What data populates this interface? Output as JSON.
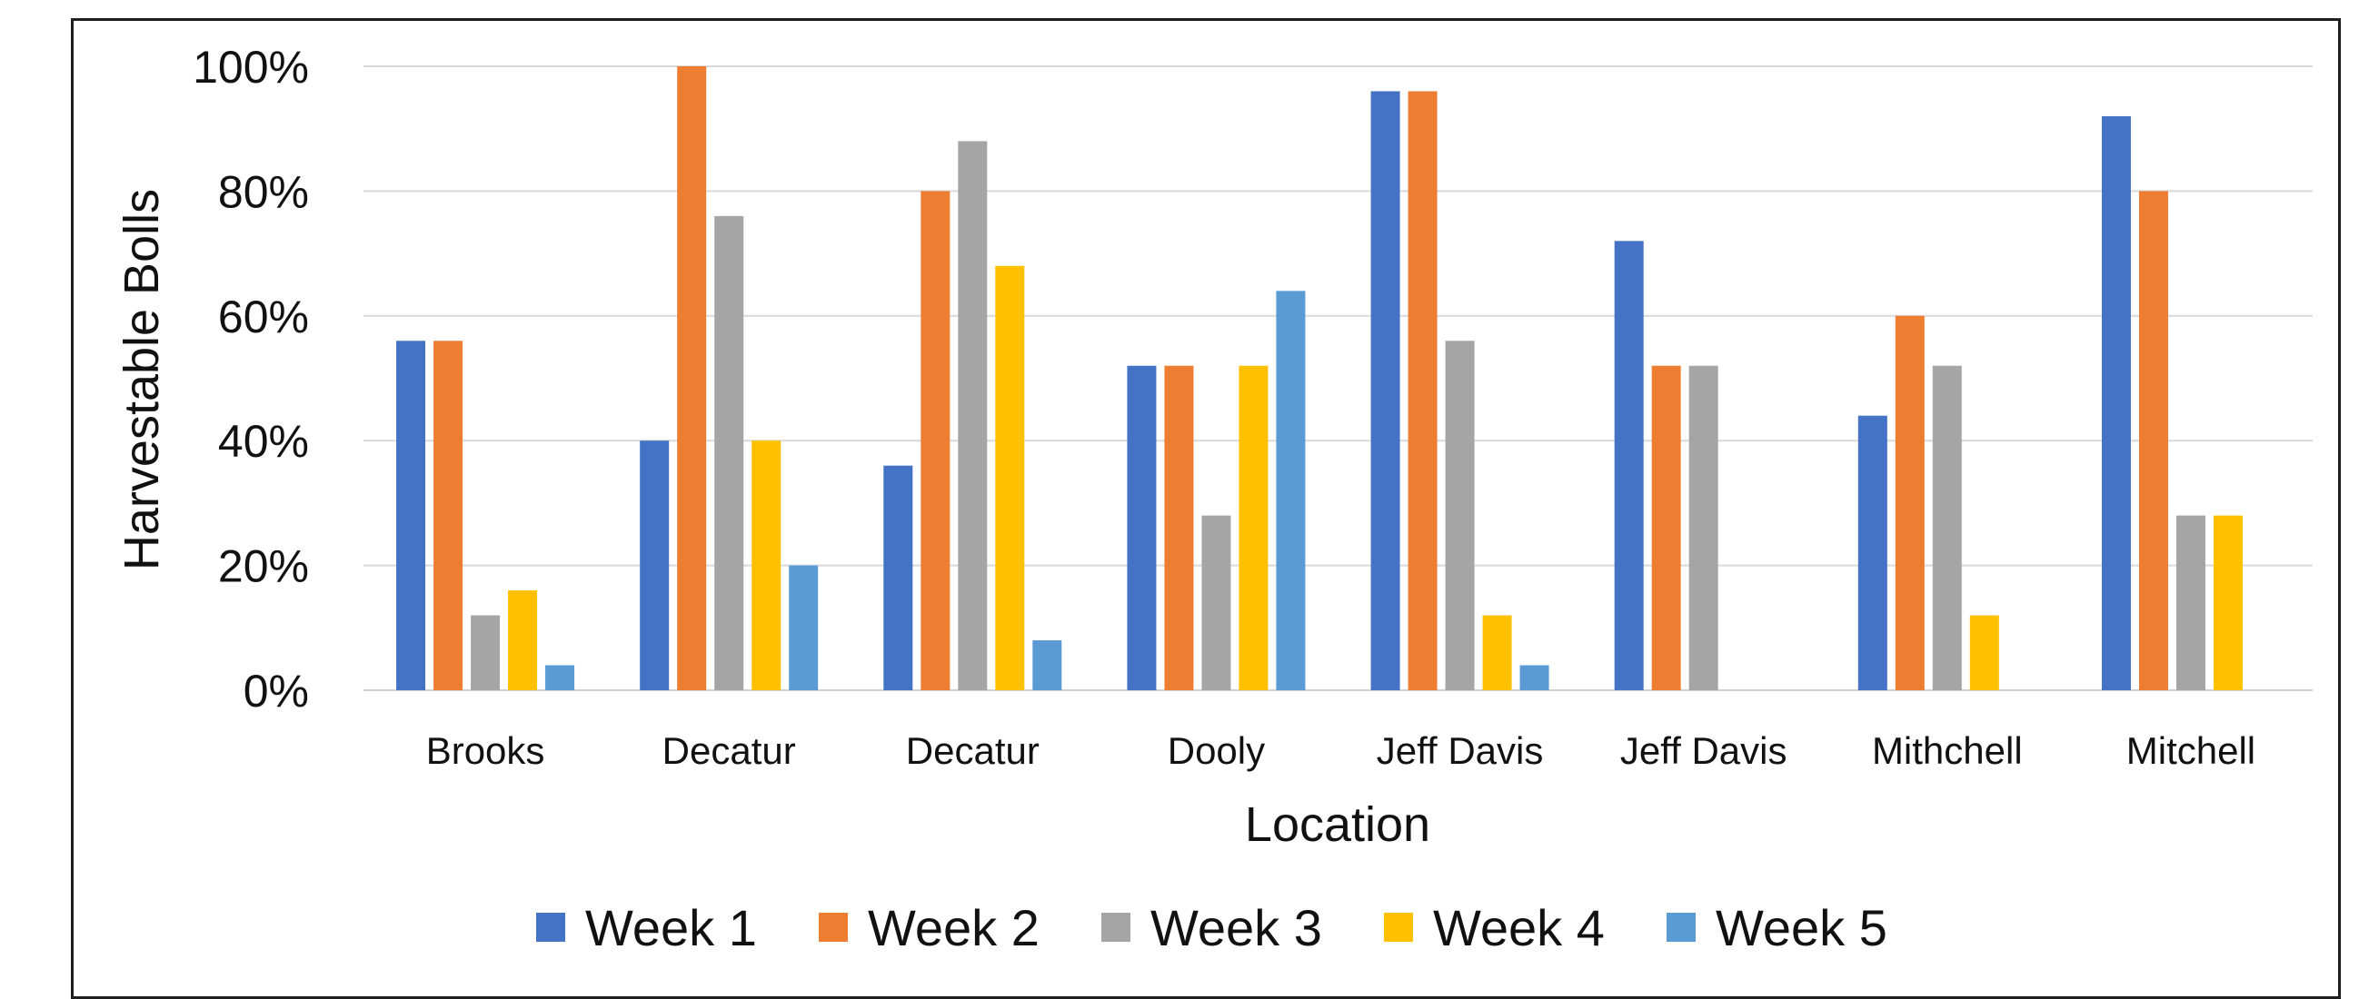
{
  "chart_data": {
    "type": "bar",
    "categories": [
      "Brooks",
      "Decatur",
      "Decatur",
      "Dooly",
      "Jeff Davis",
      "Jeff Davis",
      "Mithchell",
      "Mitchell"
    ],
    "series": [
      {
        "name": "Week 1",
        "color": "#4472C4",
        "values": [
          56,
          40,
          36,
          52,
          96,
          72,
          44,
          92
        ]
      },
      {
        "name": "Week 2",
        "color": "#ED7D31",
        "values": [
          56,
          100,
          80,
          52,
          96,
          52,
          60,
          80
        ]
      },
      {
        "name": "Week 3",
        "color": "#A5A5A5",
        "values": [
          12,
          76,
          88,
          28,
          56,
          52,
          52,
          28
        ]
      },
      {
        "name": "Week 4",
        "color": "#FFC000",
        "values": [
          16,
          40,
          68,
          52,
          12,
          null,
          12,
          28
        ]
      },
      {
        "name": "Week 5",
        "color": "#5B9BD5",
        "values": [
          4,
          20,
          8,
          64,
          4,
          null,
          null,
          null
        ]
      }
    ],
    "title": "",
    "xlabel": "Location",
    "ylabel": "Harvestable Bolls",
    "ylim": [
      0,
      100
    ],
    "yticks": [
      "0%",
      "20%",
      "40%",
      "60%",
      "80%",
      "100%"
    ],
    "ytick_values": [
      0,
      20,
      40,
      60,
      80,
      100
    ],
    "grid": true,
    "legend_position": "bottom"
  }
}
